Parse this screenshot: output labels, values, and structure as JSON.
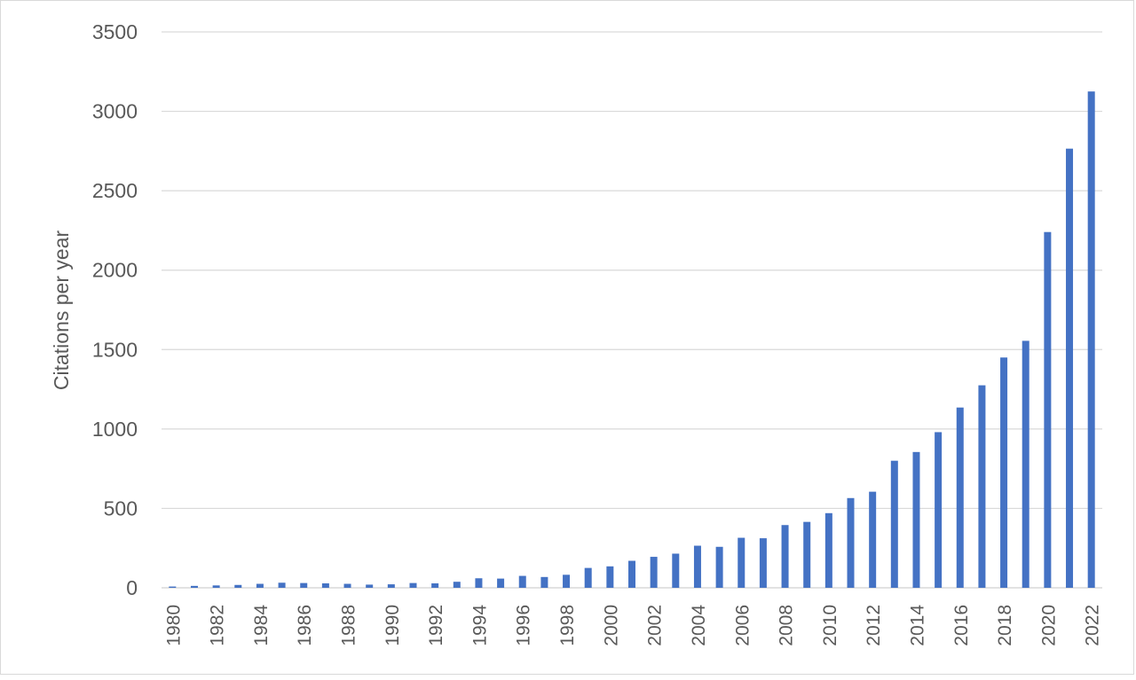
{
  "chart_data": {
    "type": "bar",
    "title": "",
    "xlabel": "",
    "ylabel": "Citations per year",
    "ylim": [
      0,
      3500
    ],
    "yticks": [
      0,
      500,
      1000,
      1500,
      2000,
      2500,
      3000,
      3500
    ],
    "grid": true,
    "legend": "none",
    "bar_color": "#4472c4",
    "grid_color": "#d9d9d9",
    "categories": [
      "1980",
      "1981",
      "1982",
      "1983",
      "1984",
      "1985",
      "1986",
      "1987",
      "1988",
      "1989",
      "1990",
      "1991",
      "1992",
      "1993",
      "1994",
      "1995",
      "1996",
      "1997",
      "1998",
      "1999",
      "2000",
      "2001",
      "2002",
      "2003",
      "2004",
      "2005",
      "2006",
      "2007",
      "2008",
      "2009",
      "2010",
      "2011",
      "2012",
      "2013",
      "2014",
      "2015",
      "2016",
      "2017",
      "2018",
      "2019",
      "2020",
      "2021",
      "2022"
    ],
    "xtick_labels": [
      "1980",
      "",
      "1982",
      "",
      "1984",
      "",
      "1986",
      "",
      "1988",
      "",
      "1990",
      "",
      "1992",
      "",
      "1994",
      "",
      "1996",
      "",
      "1998",
      "",
      "2000",
      "",
      "2002",
      "",
      "2004",
      "",
      "2006",
      "",
      "2008",
      "",
      "2010",
      "",
      "2012",
      "",
      "2014",
      "",
      "2016",
      "",
      "2018",
      "",
      "2020",
      "",
      "2022"
    ],
    "values": [
      8,
      12,
      15,
      18,
      25,
      32,
      30,
      28,
      25,
      20,
      22,
      30,
      28,
      38,
      60,
      58,
      75,
      68,
      82,
      125,
      135,
      170,
      195,
      215,
      265,
      258,
      315,
      312,
      395,
      415,
      470,
      565,
      605,
      800,
      855,
      980,
      1135,
      1275,
      1450,
      1555,
      2240,
      2765,
      3125
    ]
  }
}
